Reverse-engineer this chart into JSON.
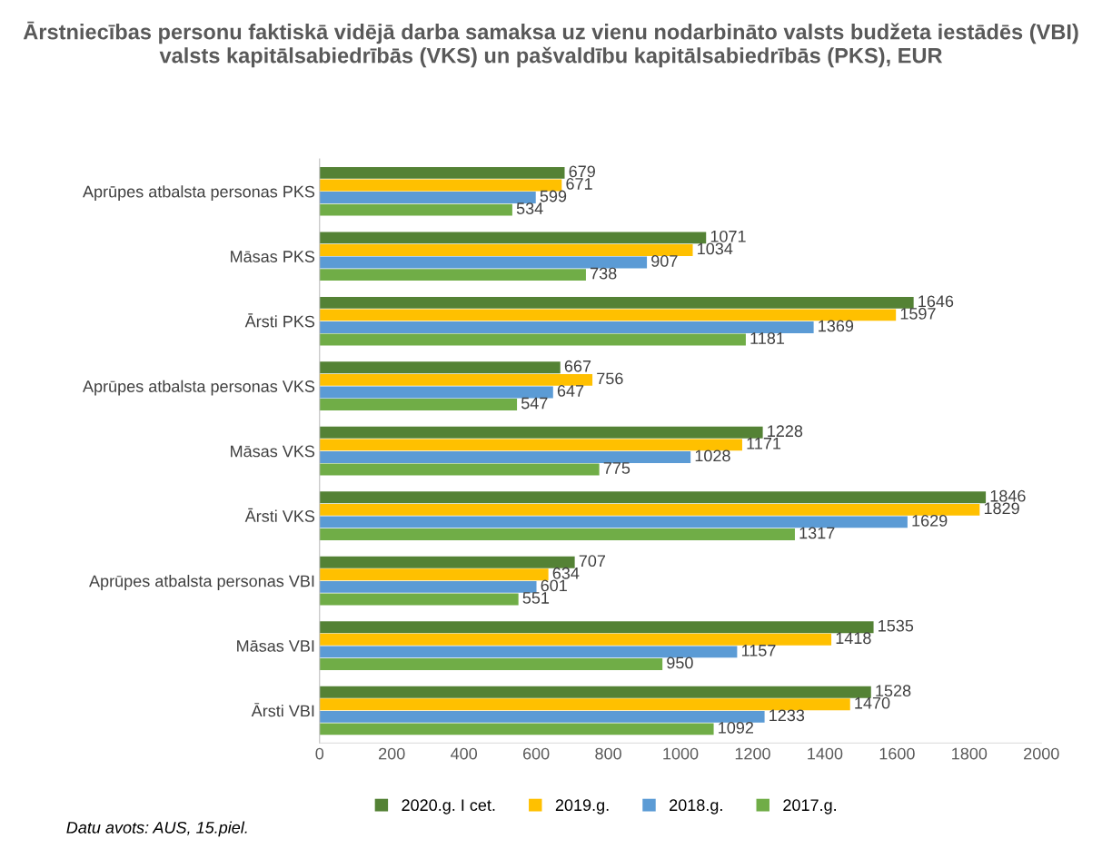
{
  "chart_data": {
    "type": "bar",
    "orientation": "horizontal",
    "title": "Ārstniecības personu faktiskā vidējā darba samaksa uz vienu nodarbināto valsts budžeta iestādēs (VBI) valsts kapitālsabiedrībās (VKS) un pašvaldību kapitālsabiedrībās (PKS), EUR",
    "categories": [
      "Aprūpes atbalsta personas PKS",
      "Māsas PKS",
      "Ārsti PKS",
      "Aprūpes atbalsta personas VKS",
      "Māsas VKS",
      "Ārsti VKS",
      "Aprūpes atbalsta personas VBI",
      "Māsas VBI",
      "Ārsti VBI"
    ],
    "series": [
      {
        "name": "2020.g. I cet.",
        "color": "#548235",
        "values": [
          679,
          1071,
          1646,
          667,
          1228,
          1846,
          707,
          1535,
          1528
        ]
      },
      {
        "name": "2019.g.",
        "color": "#ffc000",
        "values": [
          671,
          1034,
          1597,
          756,
          1171,
          1829,
          634,
          1418,
          1470
        ]
      },
      {
        "name": "2018.g.",
        "color": "#5b9bd5",
        "values": [
          599,
          907,
          1369,
          647,
          1028,
          1629,
          601,
          1157,
          1233
        ]
      },
      {
        "name": "2017.g.",
        "color": "#70ad47",
        "values": [
          534,
          738,
          1181,
          547,
          775,
          1317,
          551,
          950,
          1092
        ]
      }
    ],
    "xlim": [
      0,
      2000
    ],
    "xticks": [
      0,
      200,
      400,
      600,
      800,
      1000,
      1200,
      1400,
      1600,
      1800,
      2000
    ],
    "data_labels": true,
    "grid": false,
    "legend": "bottom",
    "annotations": [
      "Datu avots: AUS, 15.piel."
    ]
  }
}
